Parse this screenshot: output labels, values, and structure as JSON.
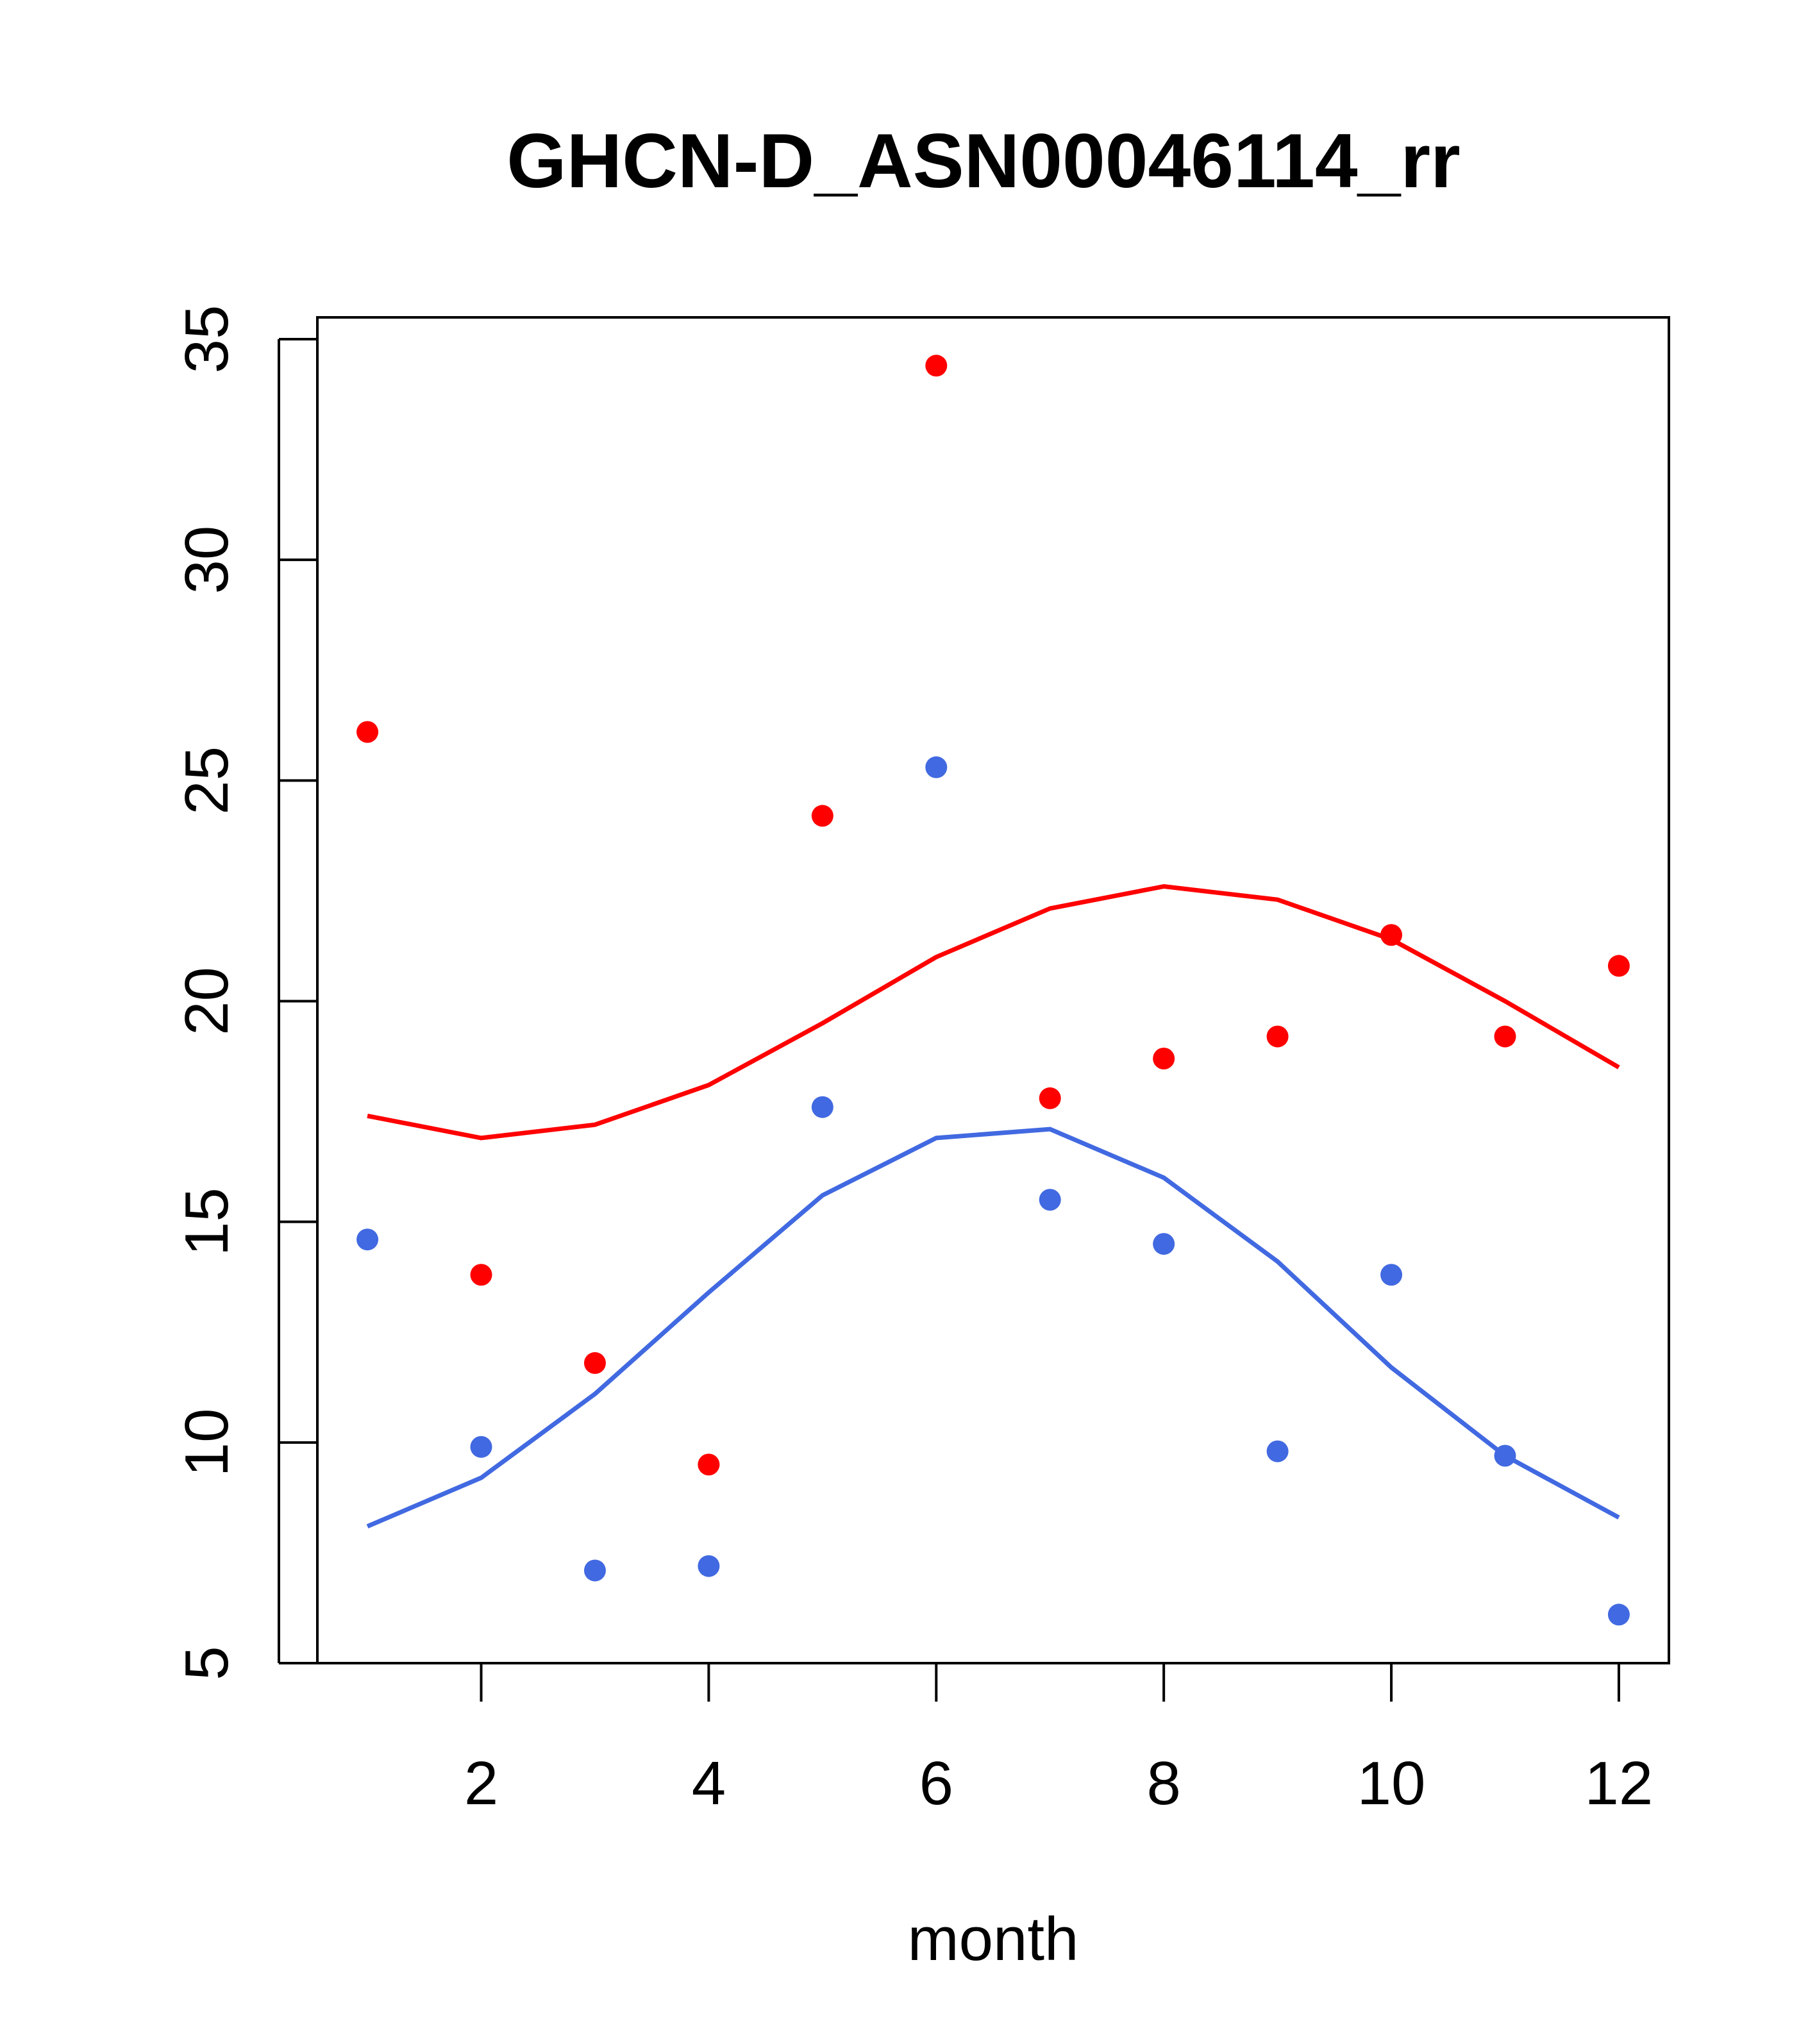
{
  "chart_data": {
    "type": "scatter",
    "title": "GHCN-D_ASN00046114_rr",
    "xlabel": "month",
    "ylabel": "",
    "xlim": [
      0.56,
      12.44
    ],
    "ylim": [
      5,
      35.5
    ],
    "xticks": [
      2,
      4,
      6,
      8,
      10,
      12
    ],
    "yticks": [
      5,
      10,
      15,
      20,
      25,
      30,
      35
    ],
    "grid": false,
    "series": [
      {
        "name": "red points",
        "kind": "points",
        "color": "#ff0000",
        "x": [
          1,
          2,
          3,
          4,
          5,
          6,
          7,
          8,
          9,
          10,
          11,
          12
        ],
        "y": [
          26.1,
          13.8,
          11.8,
          9.5,
          24.2,
          34.4,
          17.8,
          18.7,
          19.2,
          21.5,
          19.2,
          20.8
        ]
      },
      {
        "name": "blue points",
        "kind": "points",
        "color": "#4169e1",
        "x": [
          1,
          2,
          3,
          4,
          5,
          6,
          7,
          8,
          9,
          10,
          11,
          12
        ],
        "y": [
          14.6,
          9.9,
          7.1,
          7.2,
          17.6,
          25.3,
          15.5,
          14.5,
          9.8,
          13.8,
          9.7,
          6.1
        ]
      },
      {
        "name": "red curve",
        "kind": "line",
        "color": "#ff0000",
        "x": [
          1,
          2,
          3,
          4,
          5,
          6,
          7,
          8,
          9,
          10,
          11,
          12
        ],
        "y": [
          17.4,
          16.9,
          17.2,
          18.1,
          19.5,
          21.0,
          22.1,
          22.6,
          22.3,
          21.4,
          20.0,
          18.5
        ]
      },
      {
        "name": "blue curve",
        "kind": "line",
        "color": "#4169e1",
        "x": [
          1,
          2,
          3,
          4,
          5,
          6,
          7,
          8,
          9,
          10,
          11,
          12
        ],
        "y": [
          8.1,
          9.2,
          11.1,
          13.4,
          15.6,
          16.9,
          17.1,
          16.0,
          14.1,
          11.7,
          9.7,
          8.3
        ]
      }
    ]
  }
}
